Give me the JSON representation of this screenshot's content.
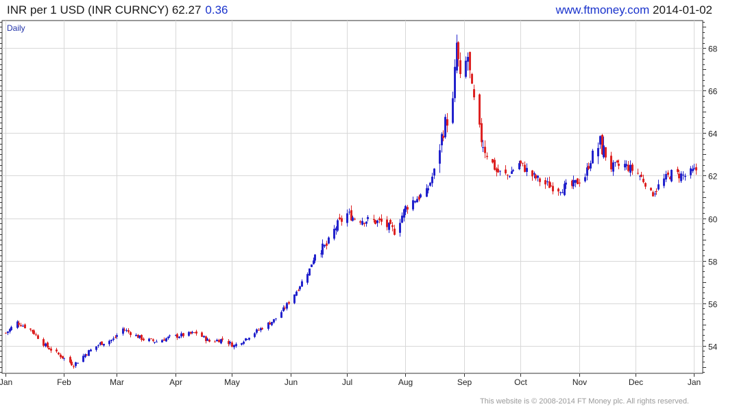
{
  "header": {
    "title": "INR per 1 USD (INR CURNCY) 62.27",
    "change": "0.36",
    "site": "www.ftmoney.com",
    "date": "2014-01-02"
  },
  "footer": {
    "copyright": "This website is © 2008-2014 FT Money plc. All rights reserved."
  },
  "chart_data": {
    "type": "candlestick",
    "frequency_label": "Daily",
    "ylim": [
      52.7,
      69.3
    ],
    "y_ticks": [
      54,
      56,
      58,
      60,
      62,
      64,
      66,
      68
    ],
    "y_tick_labels": [
      "54",
      "56",
      "58",
      "60",
      "62",
      "64",
      "66",
      "68"
    ],
    "x_range": [
      "2013-01-01",
      "2014-01-03"
    ],
    "x_ticks": [
      {
        "date": "2013-01-01",
        "label": "Jan"
      },
      {
        "date": "2013-02-01",
        "label": "Feb"
      },
      {
        "date": "2013-03-01",
        "label": "Mar"
      },
      {
        "date": "2013-04-01",
        "label": "Apr"
      },
      {
        "date": "2013-05-01",
        "label": "May"
      },
      {
        "date": "2013-06-01",
        "label": "Jun"
      },
      {
        "date": "2013-07-01",
        "label": "Jul"
      },
      {
        "date": "2013-08-01",
        "label": "Aug"
      },
      {
        "date": "2013-09-01",
        "label": "Sep"
      },
      {
        "date": "2013-10-01",
        "label": "Oct"
      },
      {
        "date": "2013-11-01",
        "label": "Nov"
      },
      {
        "date": "2013-12-01",
        "label": "Dec"
      },
      {
        "date": "2014-01-01",
        "label": "Jan"
      }
    ],
    "grid": true,
    "colors": {
      "up": "#2222cc",
      "down": "#dd2222",
      "grid": "#d8d8d8",
      "axis": "#333333"
    },
    "close_anchors": [
      [
        "2013-01-01",
        54.6
      ],
      [
        "2013-01-07",
        55.1
      ],
      [
        "2013-01-15",
        54.7
      ],
      [
        "2013-01-22",
        54.0
      ],
      [
        "2013-02-01",
        53.4
      ],
      [
        "2013-02-06",
        53.1
      ],
      [
        "2013-02-12",
        53.6
      ],
      [
        "2013-02-20",
        54.1
      ],
      [
        "2013-02-27",
        54.3
      ],
      [
        "2013-03-04",
        54.8
      ],
      [
        "2013-03-08",
        54.6
      ],
      [
        "2013-03-15",
        54.3
      ],
      [
        "2013-03-22",
        54.2
      ],
      [
        "2013-03-29",
        54.4
      ],
      [
        "2013-04-05",
        54.5
      ],
      [
        "2013-04-12",
        54.6
      ],
      [
        "2013-04-19",
        54.2
      ],
      [
        "2013-04-26",
        54.3
      ],
      [
        "2013-05-02",
        54.0
      ],
      [
        "2013-05-09",
        54.4
      ],
      [
        "2013-05-16",
        54.8
      ],
      [
        "2013-05-23",
        55.2
      ],
      [
        "2013-05-29",
        55.8
      ],
      [
        "2013-06-05",
        56.7
      ],
      [
        "2013-06-11",
        57.6
      ],
      [
        "2013-06-14",
        58.4
      ],
      [
        "2013-06-20",
        58.7
      ],
      [
        "2013-06-25",
        59.6
      ],
      [
        "2013-07-01",
        60.2
      ],
      [
        "2013-07-05",
        60.0
      ],
      [
        "2013-07-12",
        59.9
      ],
      [
        "2013-07-19",
        59.8
      ],
      [
        "2013-07-26",
        59.4
      ],
      [
        "2013-08-01",
        60.5
      ],
      [
        "2013-08-06",
        60.9
      ],
      [
        "2013-08-12",
        61.2
      ],
      [
        "2013-08-16",
        62.2
      ],
      [
        "2013-08-21",
        64.2
      ],
      [
        "2013-08-26",
        65.4
      ],
      [
        "2013-08-28",
        68.2
      ],
      [
        "2013-08-30",
        66.4
      ],
      [
        "2013-09-03",
        67.6
      ],
      [
        "2013-09-05",
        65.9
      ],
      [
        "2013-09-09",
        64.0
      ],
      [
        "2013-09-12",
        63.3
      ],
      [
        "2013-09-18",
        62.2
      ],
      [
        "2013-09-24",
        62.0
      ],
      [
        "2013-09-30",
        62.6
      ],
      [
        "2013-10-07",
        62.0
      ],
      [
        "2013-10-14",
        61.6
      ],
      [
        "2013-10-21",
        61.4
      ],
      [
        "2013-10-28",
        61.5
      ],
      [
        "2013-11-04",
        62.0
      ],
      [
        "2013-11-08",
        63.0
      ],
      [
        "2013-11-12",
        63.5
      ],
      [
        "2013-11-18",
        62.4
      ],
      [
        "2013-11-25",
        62.5
      ],
      [
        "2013-12-02",
        62.1
      ],
      [
        "2013-12-06",
        61.7
      ],
      [
        "2013-12-09",
        61.1
      ],
      [
        "2013-12-16",
        61.8
      ],
      [
        "2013-12-20",
        62.1
      ],
      [
        "2013-12-27",
        62.0
      ],
      [
        "2014-01-02",
        62.27
      ]
    ]
  }
}
